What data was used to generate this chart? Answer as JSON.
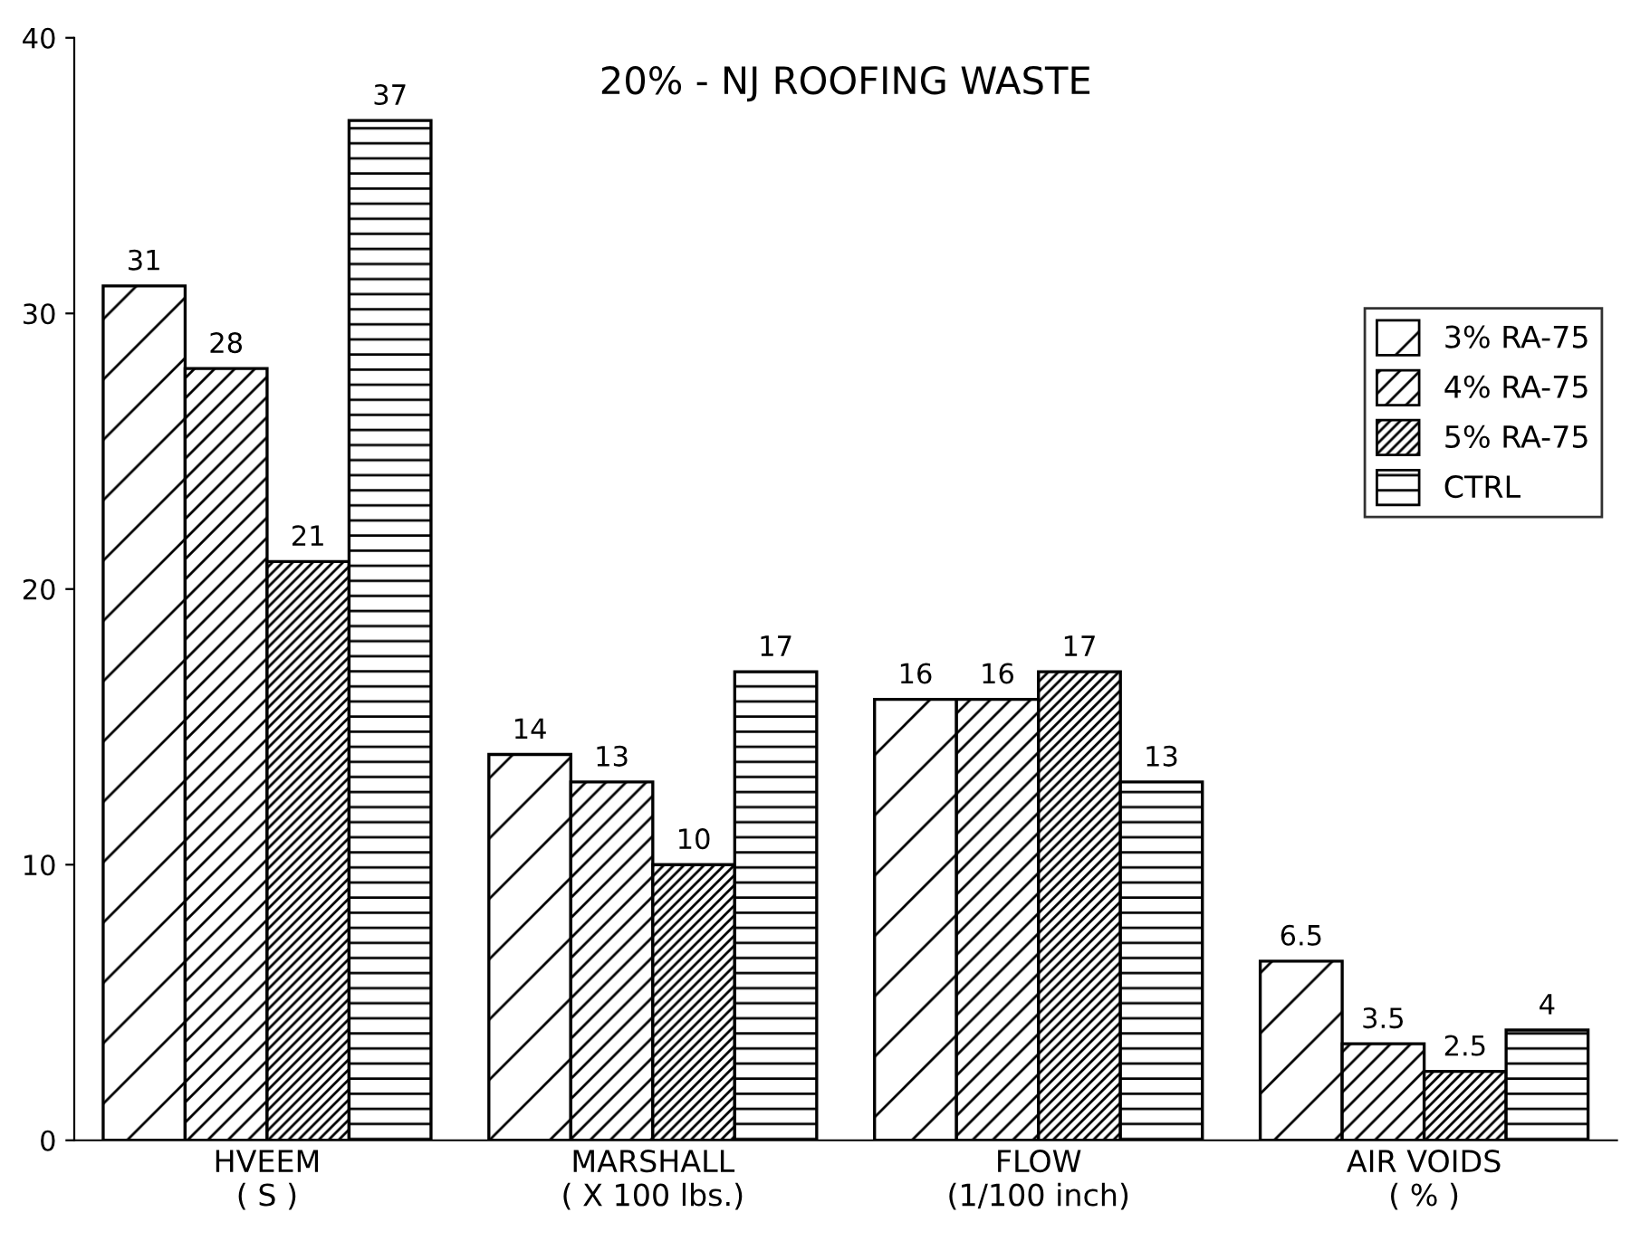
{
  "chart_data": {
    "type": "bar",
    "title": "20% - NJ ROOFING WASTE",
    "categories": [
      "HVEEM\n( S )",
      "MARSHALL\n( X 100 lbs.)",
      "FLOW\n(1/100 inch)",
      "AIR VOIDS\n( % )"
    ],
    "series": [
      {
        "name": "3% RA-75",
        "color": "#000000",
        "values": [
          31,
          14,
          16,
          6.5
        ]
      },
      {
        "name": "4% RA-75",
        "color": "#000000",
        "values": [
          28,
          13,
          16,
          3.5
        ]
      },
      {
        "name": "5% RA-75",
        "color": "#000000",
        "values": [
          21,
          10,
          17,
          2.5
        ]
      },
      {
        "name": "CTRL",
        "color": "#000000",
        "values": [
          37,
          17,
          13,
          4
        ]
      }
    ],
    "ylim": [
      0,
      40
    ],
    "yticks": [
      0,
      10,
      20,
      30,
      40
    ],
    "grid": false,
    "legend": "right",
    "data_labels": true
  }
}
